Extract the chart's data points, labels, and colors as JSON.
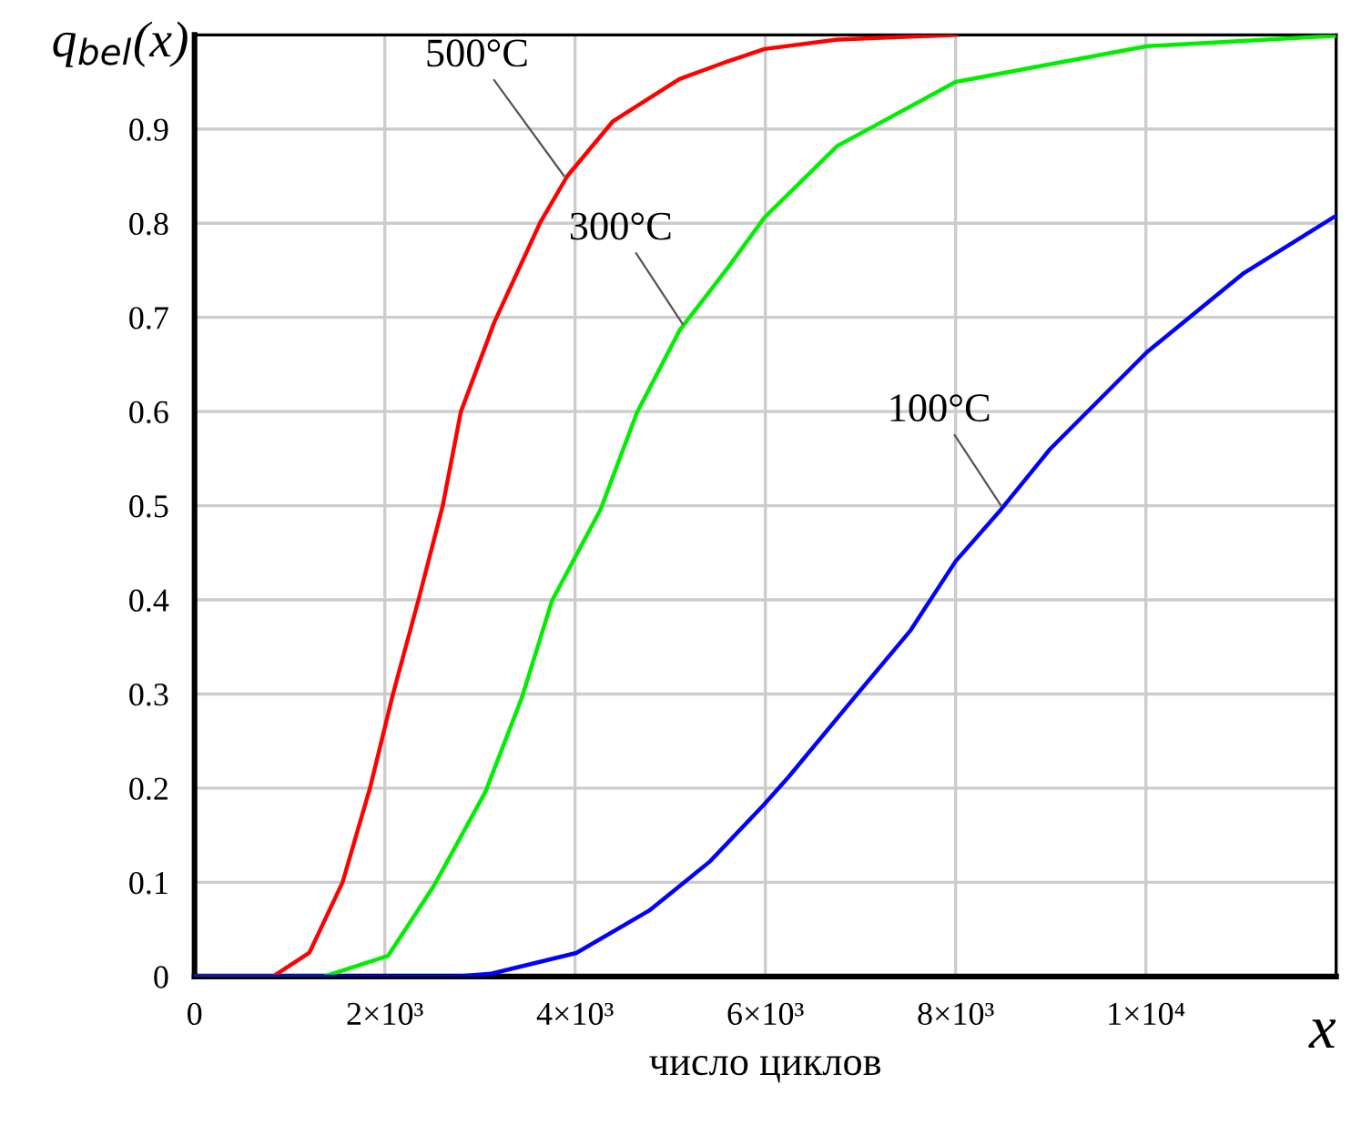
{
  "chart_data": {
    "type": "line",
    "ylabel": "q$_{bel}$(x)",
    "xlabel": "число циклов",
    "annotations": [
      "x",
      {
        "text": "500°C",
        "x": 3885,
        "y": 0.85
      },
      {
        "text": "300°C",
        "x": 5130,
        "y": 0.693
      },
      {
        "text": "100°C",
        "x": 8478,
        "y": 0.5
      }
    ],
    "series": [
      {
        "color": "#ff0000",
        "x": [
          0,
          823,
          1206,
          1556,
          1844,
          2086,
          2354,
          2609,
          2800,
          3152,
          3630,
          3918,
          4396,
          5097,
          5608,
          5990,
          6756,
          8000
        ],
        "values": [
          0,
          0,
          0.025,
          0.1,
          0.2,
          0.3,
          0.4,
          0.5,
          0.6,
          0.695,
          0.8,
          0.85,
          0.908,
          0.953,
          0.972,
          0.985,
          0.995,
          1.0
        ]
      },
      {
        "color": "#00ee00",
        "x": [
          0,
          1360,
          2035,
          2514,
          3057,
          3440,
          3757,
          4268,
          4651,
          5097,
          5608,
          5990,
          6756,
          8000,
          10010,
          11986
        ],
        "values": [
          0,
          0,
          0.022,
          0.096,
          0.196,
          0.296,
          0.399,
          0.496,
          0.599,
          0.686,
          0.753,
          0.806,
          0.882,
          0.95,
          0.988,
          0.999
        ]
      },
      {
        "color": "#0000ff",
        "x": [
          0,
          2737,
          3120,
          4013,
          4779,
          5416,
          5990,
          6245,
          6884,
          7522,
          8000,
          8478,
          8992,
          10010,
          11029,
          12000
        ],
        "values": [
          0,
          0,
          0.003,
          0.025,
          0.07,
          0.122,
          0.183,
          0.212,
          0.29,
          0.367,
          0.441,
          0.496,
          0.56,
          0.663,
          0.747,
          0.808
        ]
      }
    ],
    "xlim": [
      0,
      12000
    ],
    "ylim": [
      0,
      1
    ],
    "xticks": [
      0,
      {
        "value": 2000,
        "label": "2×10³"
      },
      {
        "value": 4000,
        "label": "4×10³"
      },
      {
        "value": 6000,
        "label": "6×10³"
      },
      {
        "value": 8000,
        "label": "8×10³"
      },
      {
        "value": 10000,
        "label": "1×10⁴"
      }
    ],
    "yticks": [
      0,
      0.1,
      0.2,
      0.3,
      0.4,
      0.5,
      0.6,
      0.7,
      0.8,
      0.9
    ],
    "grid": true,
    "legend": false
  }
}
